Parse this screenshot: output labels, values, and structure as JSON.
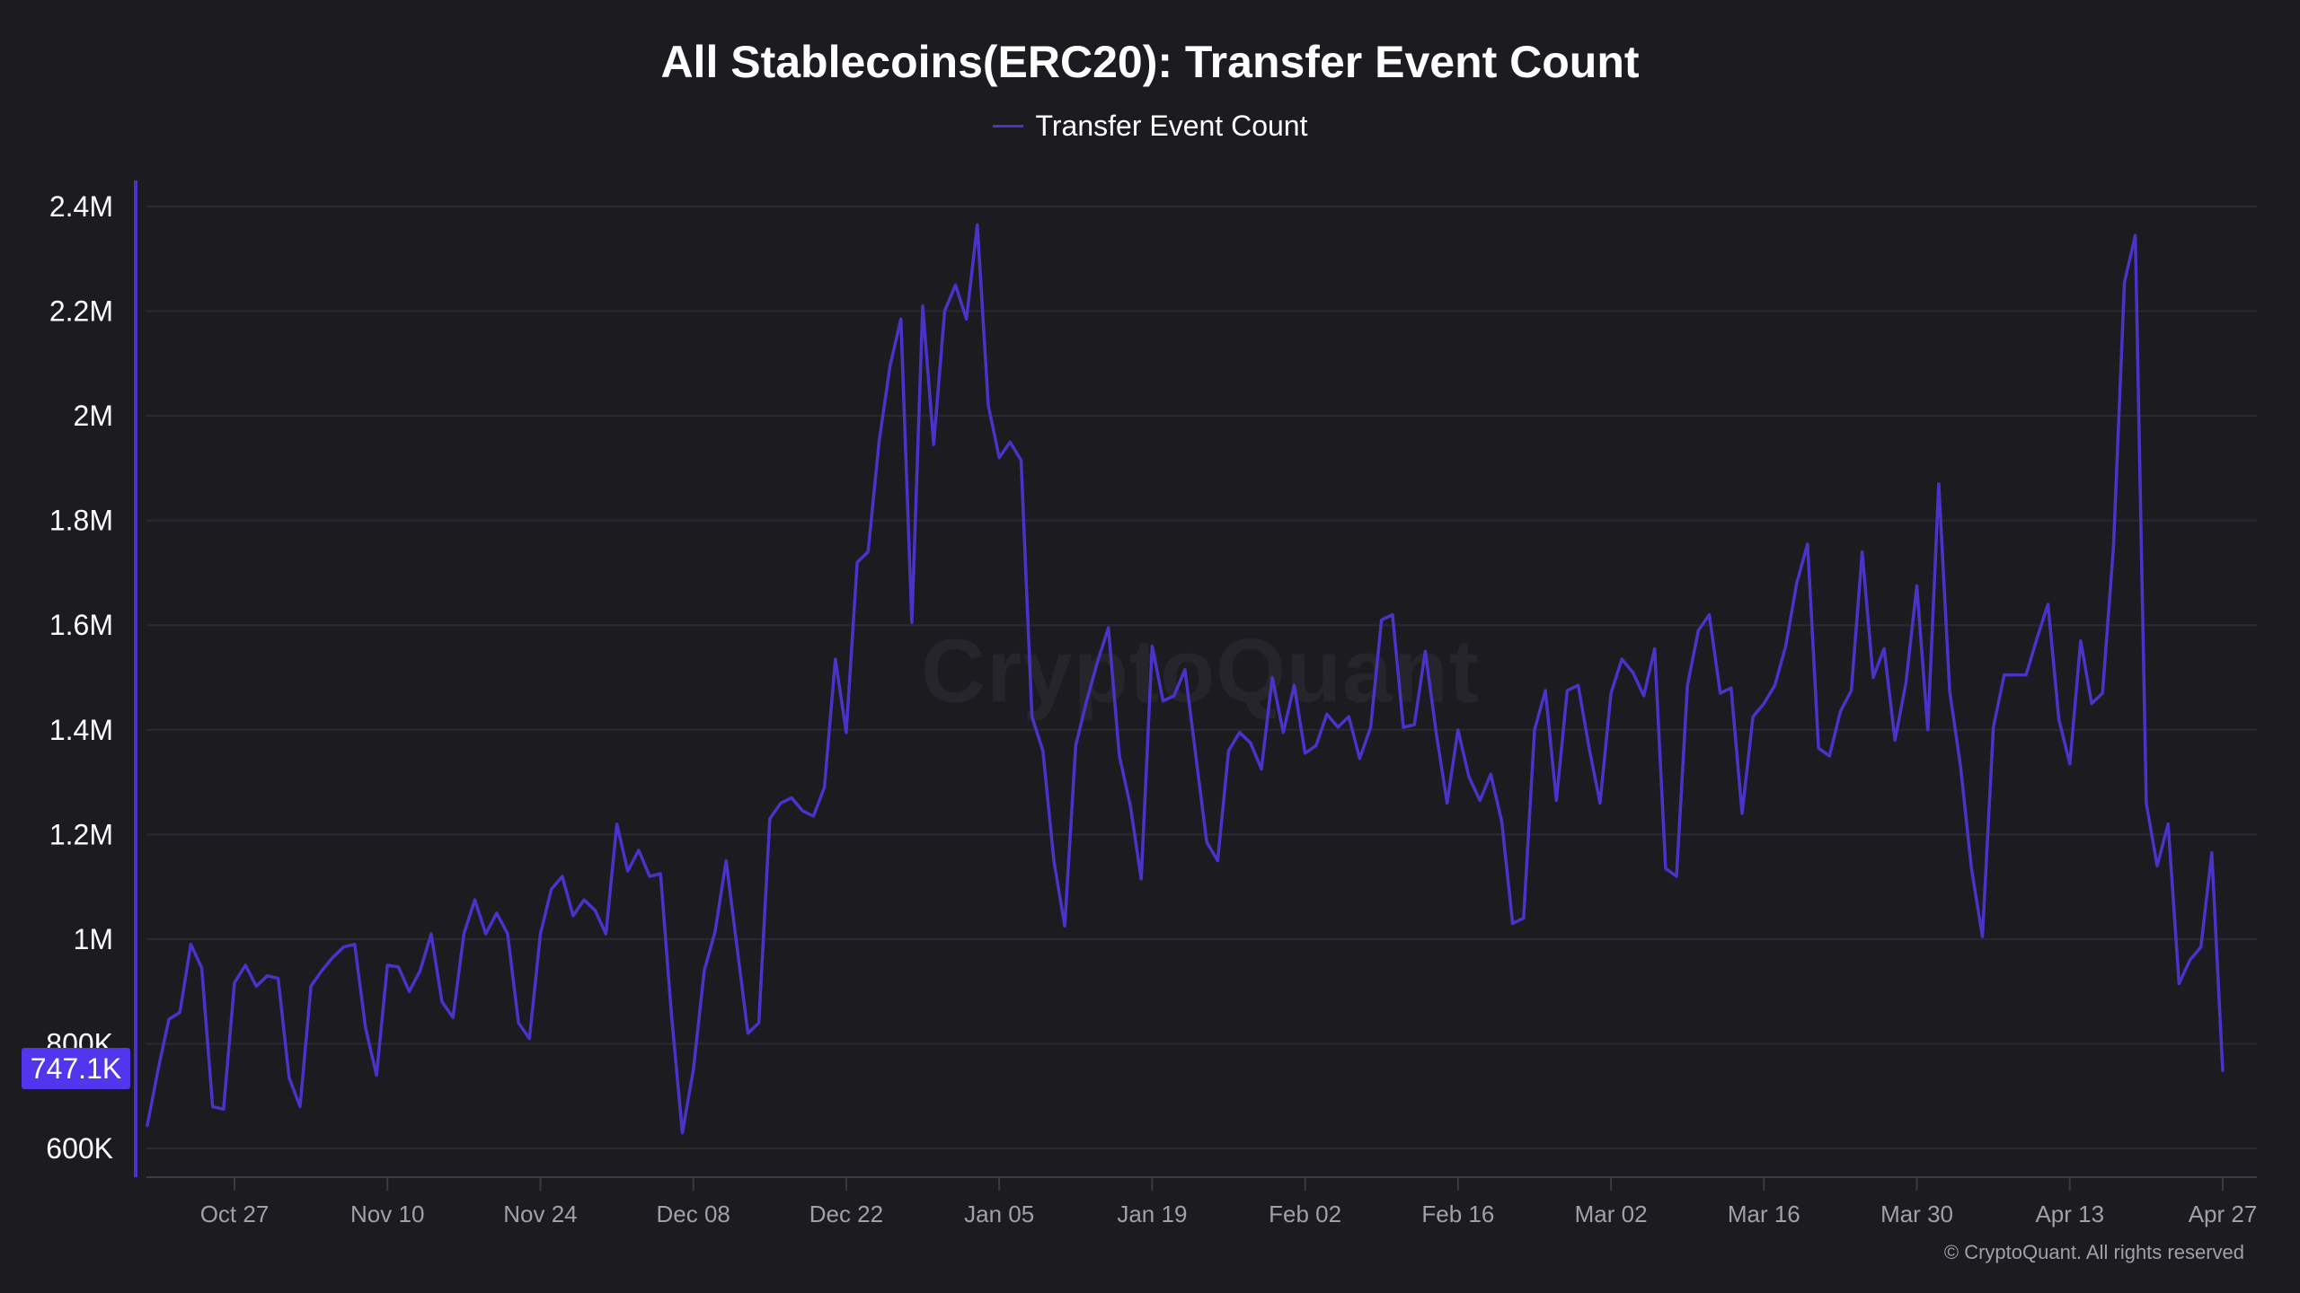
{
  "chart_data": {
    "type": "line",
    "title": "All Stablecoins(ERC20): Transfer Event Count",
    "legend": [
      "Transfer Event Count"
    ],
    "legend_placement": "top-center",
    "xlabel": "",
    "ylabel": "",
    "ylim": [
      550000,
      2450000
    ],
    "y_ticks": [
      600000,
      800000,
      1000000,
      1200000,
      1400000,
      1600000,
      1800000,
      2000000,
      2200000,
      2400000
    ],
    "y_tick_labels": [
      "600K",
      "800K",
      "1M",
      "1.2M",
      "1.4M",
      "1.6M",
      "1.8M",
      "2M",
      "2.2M",
      "2.4M"
    ],
    "x_ticks": [
      "2024-10-27",
      "2024-11-10",
      "2024-11-24",
      "2024-12-08",
      "2024-12-22",
      "2025-01-05",
      "2025-01-19",
      "2025-02-02",
      "2025-02-16",
      "2025-03-02",
      "2025-03-16",
      "2025-03-30",
      "2025-04-13",
      "2025-04-27"
    ],
    "x_tick_labels": [
      "Oct 27",
      "Nov 10",
      "Nov 24",
      "Dec 08",
      "Dec 22",
      "Jan 05",
      "Jan 19",
      "Feb 02",
      "Feb 16",
      "Mar 02",
      "Mar 16",
      "Mar 30",
      "Apr 13",
      "Apr 27"
    ],
    "grid": true,
    "colors": {
      "line": "#4a33c8",
      "badge": "#5236ee",
      "background": "#1b1b20"
    },
    "last_value_label": "747.1K",
    "series": [
      {
        "name": "Transfer Event Count",
        "x": [
          "2024-10-19",
          "2024-10-20",
          "2024-10-21",
          "2024-10-22",
          "2024-10-23",
          "2024-10-24",
          "2024-10-25",
          "2024-10-26",
          "2024-10-27",
          "2024-10-28",
          "2024-10-29",
          "2024-10-30",
          "2024-10-31",
          "2024-11-01",
          "2024-11-02",
          "2024-11-03",
          "2024-11-04",
          "2024-11-05",
          "2024-11-06",
          "2024-11-07",
          "2024-11-08",
          "2024-11-09",
          "2024-11-10",
          "2024-11-11",
          "2024-11-12",
          "2024-11-13",
          "2024-11-14",
          "2024-11-15",
          "2024-11-16",
          "2024-11-17",
          "2024-11-18",
          "2024-11-19",
          "2024-11-20",
          "2024-11-21",
          "2024-11-22",
          "2024-11-23",
          "2024-11-24",
          "2024-11-25",
          "2024-11-26",
          "2024-11-27",
          "2024-11-28",
          "2024-11-29",
          "2024-11-30",
          "2024-12-01",
          "2024-12-02",
          "2024-12-03",
          "2024-12-04",
          "2024-12-05",
          "2024-12-06",
          "2024-12-07",
          "2024-12-08",
          "2024-12-09",
          "2024-12-10",
          "2024-12-11",
          "2024-12-12",
          "2024-12-13",
          "2024-12-14",
          "2024-12-15",
          "2024-12-16",
          "2024-12-17",
          "2024-12-18",
          "2024-12-19",
          "2024-12-20",
          "2024-12-21",
          "2024-12-22",
          "2024-12-23",
          "2024-12-24",
          "2024-12-25",
          "2024-12-26",
          "2024-12-27",
          "2024-12-28",
          "2024-12-29",
          "2024-12-30",
          "2024-12-31",
          "2025-01-01",
          "2025-01-02",
          "2025-01-03",
          "2025-01-04",
          "2025-01-05",
          "2025-01-06",
          "2025-01-07",
          "2025-01-08",
          "2025-01-09",
          "2025-01-10",
          "2025-01-11",
          "2025-01-12",
          "2025-01-13",
          "2025-01-14",
          "2025-01-15",
          "2025-01-16",
          "2025-01-17",
          "2025-01-18",
          "2025-01-19",
          "2025-01-20",
          "2025-01-21",
          "2025-01-22",
          "2025-01-23",
          "2025-01-24",
          "2025-01-25",
          "2025-01-26",
          "2025-01-27",
          "2025-01-28",
          "2025-01-29",
          "2025-01-30",
          "2025-01-31",
          "2025-02-01",
          "2025-02-02",
          "2025-02-03",
          "2025-02-04",
          "2025-02-05",
          "2025-02-06",
          "2025-02-07",
          "2025-02-08",
          "2025-02-09",
          "2025-02-10",
          "2025-02-11",
          "2025-02-12",
          "2025-02-13",
          "2025-02-14",
          "2025-02-15",
          "2025-02-16",
          "2025-02-17",
          "2025-02-18",
          "2025-02-19",
          "2025-02-20",
          "2025-02-21",
          "2025-02-22",
          "2025-02-23",
          "2025-02-24",
          "2025-02-25",
          "2025-02-26",
          "2025-02-27",
          "2025-02-28",
          "2025-03-01",
          "2025-03-02",
          "2025-03-03",
          "2025-03-04",
          "2025-03-05",
          "2025-03-06",
          "2025-03-07",
          "2025-03-08",
          "2025-03-09",
          "2025-03-10",
          "2025-03-11",
          "2025-03-12",
          "2025-03-13",
          "2025-03-14",
          "2025-03-15",
          "2025-03-16",
          "2025-03-17",
          "2025-03-18",
          "2025-03-19",
          "2025-03-20",
          "2025-03-21",
          "2025-03-22",
          "2025-03-23",
          "2025-03-24",
          "2025-03-25",
          "2025-03-26",
          "2025-03-27",
          "2025-03-28",
          "2025-03-29",
          "2025-03-30",
          "2025-03-31",
          "2025-04-01",
          "2025-04-02",
          "2025-04-03",
          "2025-04-04",
          "2025-04-05",
          "2025-04-06",
          "2025-04-07",
          "2025-04-08",
          "2025-04-09",
          "2025-04-10",
          "2025-04-11",
          "2025-04-12",
          "2025-04-13",
          "2025-04-14",
          "2025-04-15",
          "2025-04-16",
          "2025-04-17",
          "2025-04-18",
          "2025-04-19",
          "2025-04-20",
          "2025-04-21",
          "2025-04-22",
          "2025-04-23",
          "2025-04-24",
          "2025-04-25",
          "2025-04-26",
          "2025-04-27"
        ],
        "values": [
          642000,
          750000,
          847000,
          860000,
          990000,
          945000,
          680000,
          675000,
          917000,
          950000,
          910000,
          930000,
          925000,
          735000,
          680000,
          910000,
          940000,
          965000,
          985000,
          990000,
          830000,
          740000,
          950000,
          947000,
          900000,
          940000,
          1010000,
          880000,
          850000,
          1010000,
          1075000,
          1010000,
          1050000,
          1010000,
          840000,
          810000,
          1010000,
          1095000,
          1120000,
          1045000,
          1075000,
          1055000,
          1010000,
          1220000,
          1130000,
          1170000,
          1120000,
          1125000,
          855000,
          630000,
          750000,
          940000,
          1015000,
          1150000,
          985000,
          820000,
          840000,
          1230000,
          1260000,
          1270000,
          1245000,
          1235000,
          1290000,
          1535000,
          1395000,
          1720000,
          1740000,
          1950000,
          2095000,
          2185000,
          1605000,
          2210000,
          1945000,
          2200000,
          2250000,
          2185000,
          2365000,
          2020000,
          1920000,
          1950000,
          1915000,
          1425000,
          1360000,
          1150000,
          1025000,
          1370000,
          1455000,
          1530000,
          1595000,
          1350000,
          1255000,
          1115000,
          1560000,
          1455000,
          1465000,
          1515000,
          1350000,
          1185000,
          1150000,
          1360000,
          1395000,
          1375000,
          1325000,
          1500000,
          1395000,
          1485000,
          1355000,
          1370000,
          1430000,
          1405000,
          1425000,
          1345000,
          1405000,
          1610000,
          1620000,
          1405000,
          1410000,
          1550000,
          1395000,
          1260000,
          1400000,
          1310000,
          1265000,
          1315000,
          1225000,
          1030000,
          1040000,
          1400000,
          1475000,
          1265000,
          1475000,
          1485000,
          1365000,
          1260000,
          1470000,
          1535000,
          1510000,
          1465000,
          1555000,
          1135000,
          1120000,
          1485000,
          1590000,
          1620000,
          1470000,
          1480000,
          1240000,
          1425000,
          1450000,
          1485000,
          1560000,
          1680000,
          1755000,
          1365000,
          1350000,
          1435000,
          1475000,
          1740000,
          1500000,
          1555000,
          1380000,
          1490000,
          1675000,
          1400000,
          1870000,
          1475000,
          1330000,
          1135000,
          1005000,
          1405000,
          1505000,
          1505000,
          1505000,
          1575000,
          1640000,
          1420000,
          1335000,
          1570000,
          1450000,
          1470000,
          1750000,
          2255000,
          2345000,
          1260000,
          1140000,
          1220000,
          915000,
          960000,
          985000,
          1165000,
          747100
        ]
      }
    ]
  },
  "watermark": "CryptoQuant",
  "copyright": "© CryptoQuant. All rights reserved"
}
